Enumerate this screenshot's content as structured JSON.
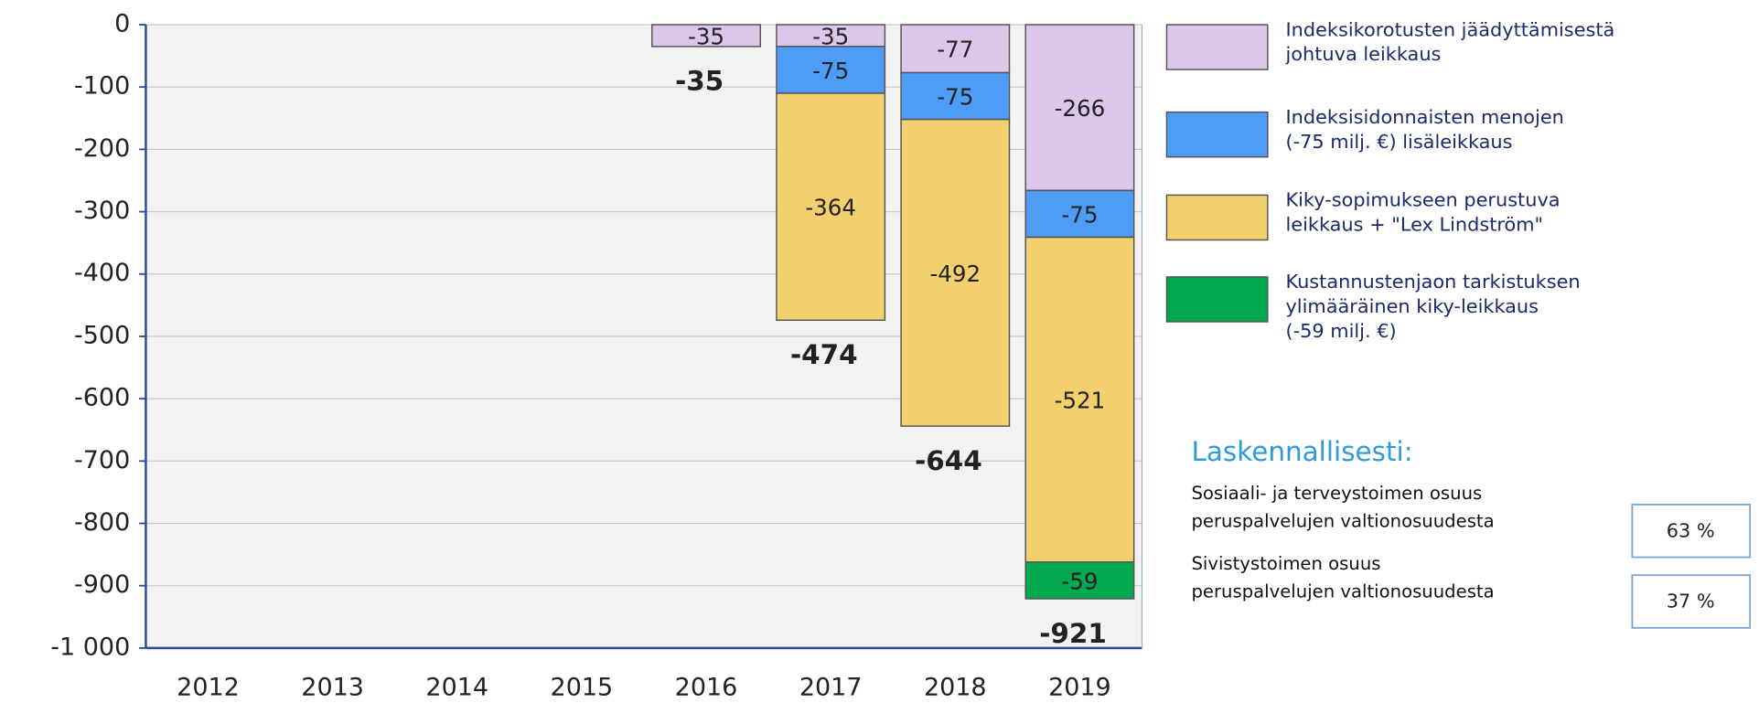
{
  "chart_data": {
    "type": "stacked_bar",
    "categories": [
      "2012",
      "2013",
      "2014",
      "2015",
      "2016",
      "2017",
      "2018",
      "2019"
    ],
    "series": [
      {
        "name": "Indeksikorotusten jäädyttämisestä\njohtuva leikkaus",
        "color": "#dcc6ea",
        "values": [
          null,
          null,
          null,
          null,
          -35,
          -35,
          -77,
          -266
        ]
      },
      {
        "name": "Indeksisidonnaisten menojen\n(-75 milj. €) lisäleikkaus",
        "color": "#4d9cf5",
        "values": [
          null,
          null,
          null,
          null,
          null,
          -75,
          -75,
          -75
        ]
      },
      {
        "name": "Kiky-sopimukseen perustuva\nleikkaus + \"Lex Lindström\"",
        "color": "#f3d06e",
        "values": [
          null,
          null,
          null,
          null,
          null,
          -364,
          -492,
          -521
        ]
      },
      {
        "name": "Kustannustenjaon tarkistuksen\nylimääräinen kiky-leikkaus\n(-59 milj. €)",
        "color": "#00a84f",
        "values": [
          null,
          null,
          null,
          null,
          null,
          null,
          null,
          -59
        ]
      }
    ],
    "totals": [
      null,
      null,
      null,
      null,
      -35,
      -474,
      -644,
      -921
    ],
    "ylim": [
      -1000,
      0
    ],
    "yticks": [
      0,
      -100,
      -200,
      -300,
      -400,
      -500,
      -600,
      -700,
      -800,
      -900,
      {
        "value": -1000,
        "label": "-1 000"
      }
    ],
    "grid": true,
    "legend": "right"
  },
  "panel": {
    "title": "Laskennallisesti:",
    "rows": [
      {
        "label": "Sosiaali- ja terveystoimen osuus\nperuspalvelujen valtionosuudesta",
        "value": "63 %"
      },
      {
        "label": "Sivistystoimen osuus\nperuspalvelujen valtionosuudesta",
        "value": "37 %"
      }
    ]
  }
}
